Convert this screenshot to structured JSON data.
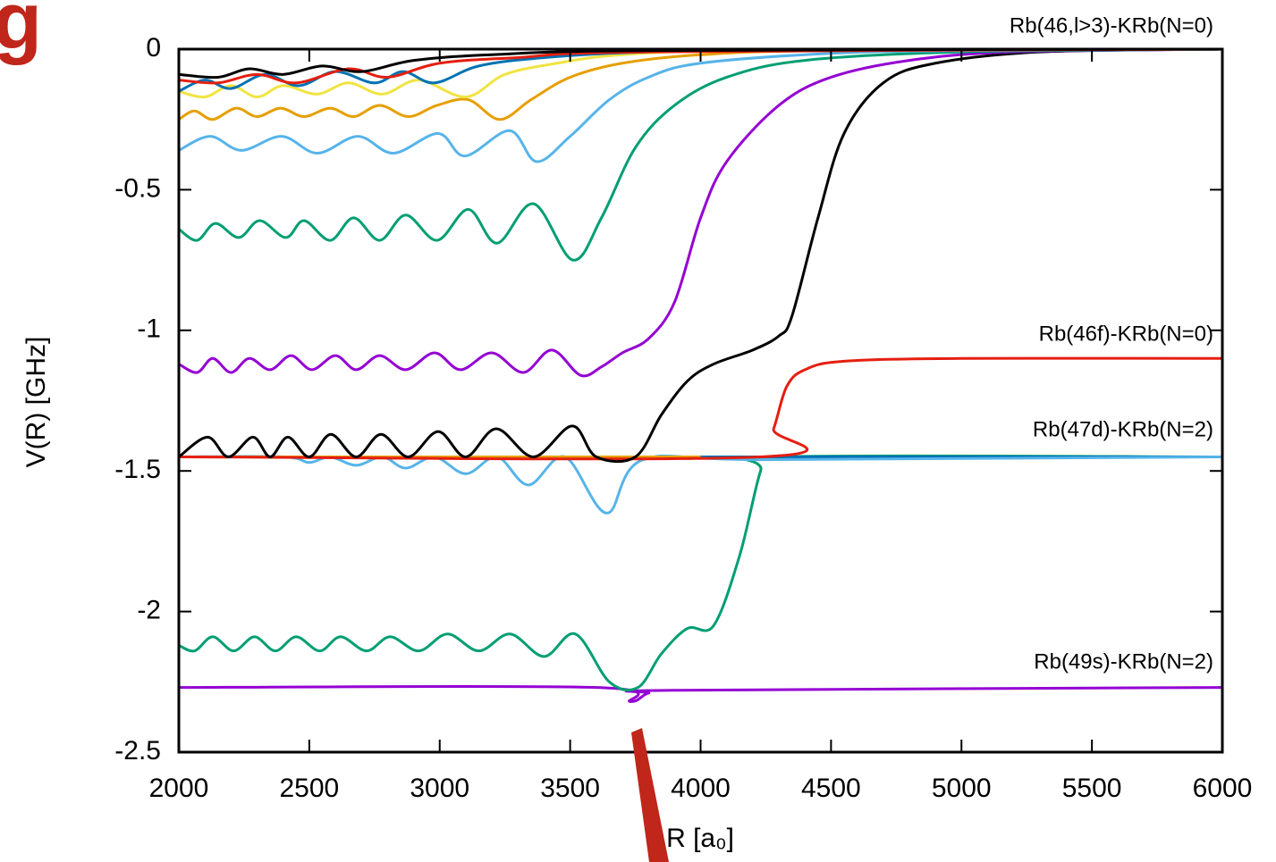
{
  "chart_data": {
    "type": "line",
    "panel_label": "g",
    "xlabel": "R [a₀]",
    "ylabel": "V(R) [GHz]",
    "xlim": [
      2000,
      6000
    ],
    "ylim": [
      -2.5,
      0
    ],
    "xticks": [
      2000,
      2500,
      3000,
      3500,
      4000,
      4500,
      5000,
      5500,
      6000
    ],
    "yticks": [
      0,
      -0.5,
      -1,
      -1.5,
      -2,
      -2.5
    ],
    "annotations": [
      "Rb(46,l>3)-KRb(N=0)",
      "Rb(46f)-KRb(N=0)",
      "Rb(47d)-KRb(N=2)",
      "Rb(49s)-KRb(N=2)"
    ],
    "series": [
      {
        "color": "#9400d3",
        "x": [
          2000,
          3600,
          3730,
          3800,
          3900,
          6000
        ],
        "values": [
          -2.27,
          -2.27,
          -2.32,
          -2.29,
          -2.28,
          -2.27
        ]
      },
      {
        "color": "#009e73",
        "x": [
          2000,
          2060,
          2130,
          2210,
          2290,
          2370,
          2450,
          2540,
          2620,
          2720,
          2810,
          2920,
          3030,
          3150,
          3270,
          3400,
          3520,
          3650,
          3760,
          3850,
          3950,
          4050,
          4150,
          4230,
          4280,
          6000
        ],
        "values": [
          -2.12,
          -2.14,
          -2.09,
          -2.14,
          -2.09,
          -2.14,
          -2.09,
          -2.14,
          -2.09,
          -2.14,
          -2.09,
          -2.14,
          -2.08,
          -2.14,
          -2.08,
          -2.16,
          -2.08,
          -2.25,
          -2.27,
          -2.15,
          -2.06,
          -2.05,
          -1.8,
          -1.5,
          -1.45,
          -1.45
        ]
      },
      {
        "color": "#0072b2",
        "x": [
          2000,
          6000
        ],
        "values": [
          -1.45,
          -1.45
        ]
      },
      {
        "color": "#56b4e9",
        "x": [
          2000,
          2400,
          2500,
          2580,
          2680,
          2780,
          2870,
          2980,
          3100,
          3220,
          3340,
          3480,
          3640,
          3780,
          4250,
          6000
        ],
        "values": [
          -1.45,
          -1.45,
          -1.47,
          -1.45,
          -1.48,
          -1.45,
          -1.49,
          -1.45,
          -1.51,
          -1.45,
          -1.55,
          -1.45,
          -1.65,
          -1.46,
          -1.46,
          -1.45
        ]
      },
      {
        "color": "#e69f00",
        "x": [
          2000,
          3750,
          4000
        ],
        "values": [
          -1.45,
          -1.45,
          -1.45
        ]
      },
      {
        "color": "#e51e10",
        "x": [
          2000,
          4230,
          4280,
          4330,
          4400,
          4550,
          5000,
          6000
        ],
        "values": [
          -1.45,
          -1.45,
          -1.35,
          -1.2,
          -1.14,
          -1.11,
          -1.1,
          -1.1
        ]
      },
      {
        "color": "#000000",
        "x": [
          2000,
          2110,
          2190,
          2284,
          2350,
          2418,
          2500,
          2583,
          2680,
          2775,
          2880,
          2994,
          3100,
          3217,
          3360,
          3508,
          3600,
          3750,
          3850,
          3950,
          4050,
          4200,
          4300,
          4350,
          4450,
          4550,
          4700,
          4900,
          5300,
          6000
        ],
        "values": [
          -1.45,
          -1.38,
          -1.45,
          -1.38,
          -1.45,
          -1.38,
          -1.45,
          -1.37,
          -1.45,
          -1.37,
          -1.45,
          -1.36,
          -1.45,
          -1.35,
          -1.45,
          -1.34,
          -1.45,
          -1.45,
          -1.3,
          -1.18,
          -1.12,
          -1.07,
          -1.02,
          -0.95,
          -0.6,
          -0.3,
          -0.12,
          -0.05,
          -0.01,
          0
        ]
      },
      {
        "color": "#9400d3",
        "x": [
          2000,
          2070,
          2130,
          2200,
          2270,
          2350,
          2430,
          2510,
          2600,
          2680,
          2770,
          2870,
          2980,
          3080,
          3200,
          3320,
          3430,
          3540,
          3620,
          3700,
          3800,
          3900,
          4000,
          4100,
          4300,
          4500,
          4800,
          5200,
          6000
        ],
        "values": [
          -1.12,
          -1.15,
          -1.1,
          -1.15,
          -1.1,
          -1.14,
          -1.09,
          -1.14,
          -1.09,
          -1.14,
          -1.09,
          -1.14,
          -1.08,
          -1.14,
          -1.08,
          -1.15,
          -1.07,
          -1.16,
          -1.13,
          -1.08,
          -1.03,
          -0.9,
          -0.6,
          -0.4,
          -0.2,
          -0.1,
          -0.04,
          -0.01,
          0
        ]
      },
      {
        "color": "#009e73",
        "x": [
          2000,
          2070,
          2140,
          2230,
          2310,
          2410,
          2480,
          2580,
          2670,
          2770,
          2870,
          2990,
          3110,
          3220,
          3360,
          3510,
          3620,
          3750,
          3900,
          4100,
          4400,
          5000,
          6000
        ],
        "values": [
          -0.64,
          -0.68,
          -0.62,
          -0.67,
          -0.61,
          -0.67,
          -0.61,
          -0.68,
          -0.6,
          -0.68,
          -0.59,
          -0.68,
          -0.57,
          -0.69,
          -0.55,
          -0.75,
          -0.6,
          -0.35,
          -0.2,
          -0.1,
          -0.04,
          -0.01,
          0
        ]
      },
      {
        "color": "#56b4e9",
        "x": [
          2000,
          2120,
          2240,
          2394,
          2531,
          2686,
          2823,
          2994,
          3097,
          3268,
          3371,
          3500,
          3650,
          3800,
          4000,
          4500,
          5000,
          6000
        ],
        "values": [
          -0.36,
          -0.31,
          -0.36,
          -0.31,
          -0.37,
          -0.31,
          -0.37,
          -0.3,
          -0.38,
          -0.29,
          -0.4,
          -0.31,
          -0.18,
          -0.1,
          -0.05,
          -0.015,
          -0.005,
          0
        ]
      },
      {
        "color": "#e69f00",
        "x": [
          2000,
          2060,
          2130,
          2220,
          2300,
          2390,
          2480,
          2580,
          2670,
          2770,
          2880,
          2990,
          3110,
          3230,
          3350,
          3500,
          3700,
          4000,
          4500,
          6000
        ],
        "values": [
          -0.25,
          -0.22,
          -0.25,
          -0.21,
          -0.24,
          -0.21,
          -0.24,
          -0.21,
          -0.24,
          -0.2,
          -0.24,
          -0.2,
          -0.18,
          -0.25,
          -0.18,
          -0.1,
          -0.05,
          -0.02,
          -0.005,
          0
        ]
      },
      {
        "color": "#f0e442",
        "x": [
          2000,
          2100,
          2200,
          2300,
          2400,
          2530,
          2650,
          2780,
          2920,
          3100,
          3250,
          3450,
          3700,
          4200,
          6000
        ],
        "values": [
          -0.15,
          -0.17,
          -0.13,
          -0.17,
          -0.13,
          -0.16,
          -0.12,
          -0.16,
          -0.11,
          -0.17,
          -0.09,
          -0.05,
          -0.02,
          -0.005,
          0
        ]
      },
      {
        "color": "#0072b2",
        "x": [
          2000,
          2100,
          2200,
          2330,
          2460,
          2600,
          2750,
          2860,
          2980,
          3150,
          3400,
          3800,
          4500,
          6000
        ],
        "values": [
          -0.15,
          -0.11,
          -0.14,
          -0.09,
          -0.13,
          -0.08,
          -0.12,
          -0.08,
          -0.12,
          -0.06,
          -0.03,
          -0.01,
          -0.003,
          0
        ]
      },
      {
        "color": "#e51e10",
        "x": [
          2000,
          2150,
          2300,
          2450,
          2650,
          2800,
          3000,
          3300,
          3800,
          6000
        ],
        "values": [
          -0.11,
          -0.12,
          -0.09,
          -0.12,
          -0.07,
          -0.1,
          -0.05,
          -0.03,
          -0.01,
          0
        ]
      },
      {
        "color": "#000000",
        "x": [
          2000,
          2150,
          2270,
          2400,
          2550,
          2700,
          2900,
          3200,
          3800,
          6000
        ],
        "values": [
          -0.09,
          -0.1,
          -0.07,
          -0.09,
          -0.06,
          -0.08,
          -0.04,
          -0.02,
          -0.005,
          0
        ]
      }
    ]
  }
}
